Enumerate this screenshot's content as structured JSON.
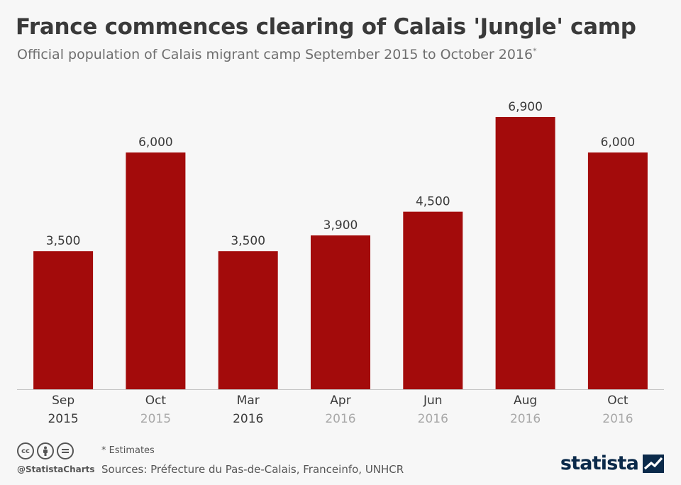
{
  "header": {
    "title": "France commences clearing of Calais 'Jungle' camp",
    "subtitle": "Official population of Calais migrant camp September 2015 to October 2016",
    "subtitle_mark": "*"
  },
  "chart_data": {
    "type": "bar",
    "categories": [
      {
        "month": "Sep",
        "year": "2015"
      },
      {
        "month": "Oct",
        "year": "2015"
      },
      {
        "month": "Mar",
        "year": "2016"
      },
      {
        "month": "Apr",
        "year": "2016"
      },
      {
        "month": "Jun",
        "year": "2016"
      },
      {
        "month": "Aug",
        "year": "2016"
      },
      {
        "month": "Oct",
        "year": "2016"
      }
    ],
    "values": [
      3500,
      6000,
      3500,
      3900,
      4500,
      6900,
      6000
    ],
    "value_labels": [
      "3,500",
      "6,000",
      "3,500",
      "3,900",
      "4,500",
      "6,900",
      "6,000"
    ],
    "year_label_emphasis": [
      true,
      false,
      true,
      false,
      false,
      false,
      false
    ],
    "ylim": [
      0,
      6900
    ],
    "bar_color": "#a30b0b",
    "grid": false,
    "legend": "none"
  },
  "footer": {
    "note": "* Estimates",
    "sources": "Sources: Préfecture du Pas-de-Calais, Franceinfo, UNHCR",
    "handle": "@StatistaCharts",
    "brand": "statista",
    "license_icons": [
      "cc-icon",
      "by-icon",
      "nd-icon"
    ]
  }
}
